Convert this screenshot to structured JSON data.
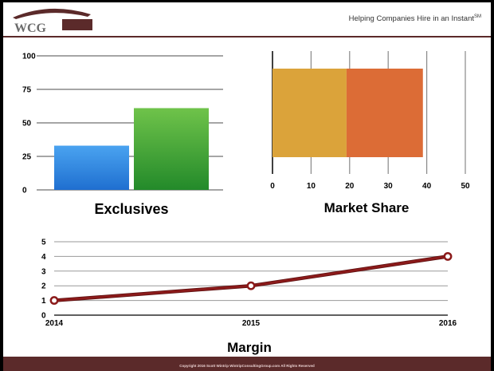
{
  "header": {
    "logo_text": "WCG",
    "tagline": "Helping Companies Hire in an Instant",
    "tagline_mark": "SM"
  },
  "footer": {
    "copyright": "Copyright 2016  Scott Wintrip  WintripConsultingGroup.com   All Rights Reserved"
  },
  "colors": {
    "brand": "#5b2a2a",
    "bar_blue": "#3d8fe0",
    "bar_green": "#4fae3a",
    "seg_gold": "#dba33a",
    "seg_orange": "#dc6c36",
    "line_red": "#8b1a1a"
  },
  "chart_data": [
    {
      "type": "bar",
      "title": "Exclusives",
      "categories": [
        "",
        ""
      ],
      "values": [
        33,
        61
      ],
      "ylim": [
        0,
        100
      ],
      "yticks": [
        "0",
        "25",
        "50",
        "75",
        "100"
      ],
      "grid": true
    },
    {
      "type": "bar",
      "title": "Market Share",
      "orientation": "horizontal",
      "stacked": true,
      "series": [
        {
          "values": [
            19.2
          ]
        },
        {
          "values": [
            19.8
          ]
        }
      ],
      "xlim": [
        0,
        50
      ],
      "xticks": [
        "0",
        "10",
        "20",
        "30",
        "40",
        "50"
      ],
      "grid": true
    },
    {
      "type": "line",
      "title": "Margin",
      "x": [
        "2014",
        "2015",
        "2016"
      ],
      "y": [
        1,
        2,
        4
      ],
      "ylim": [
        0,
        5
      ],
      "yticks": [
        "0",
        "1",
        "2",
        "3",
        "4",
        "5"
      ],
      "grid": true
    }
  ]
}
